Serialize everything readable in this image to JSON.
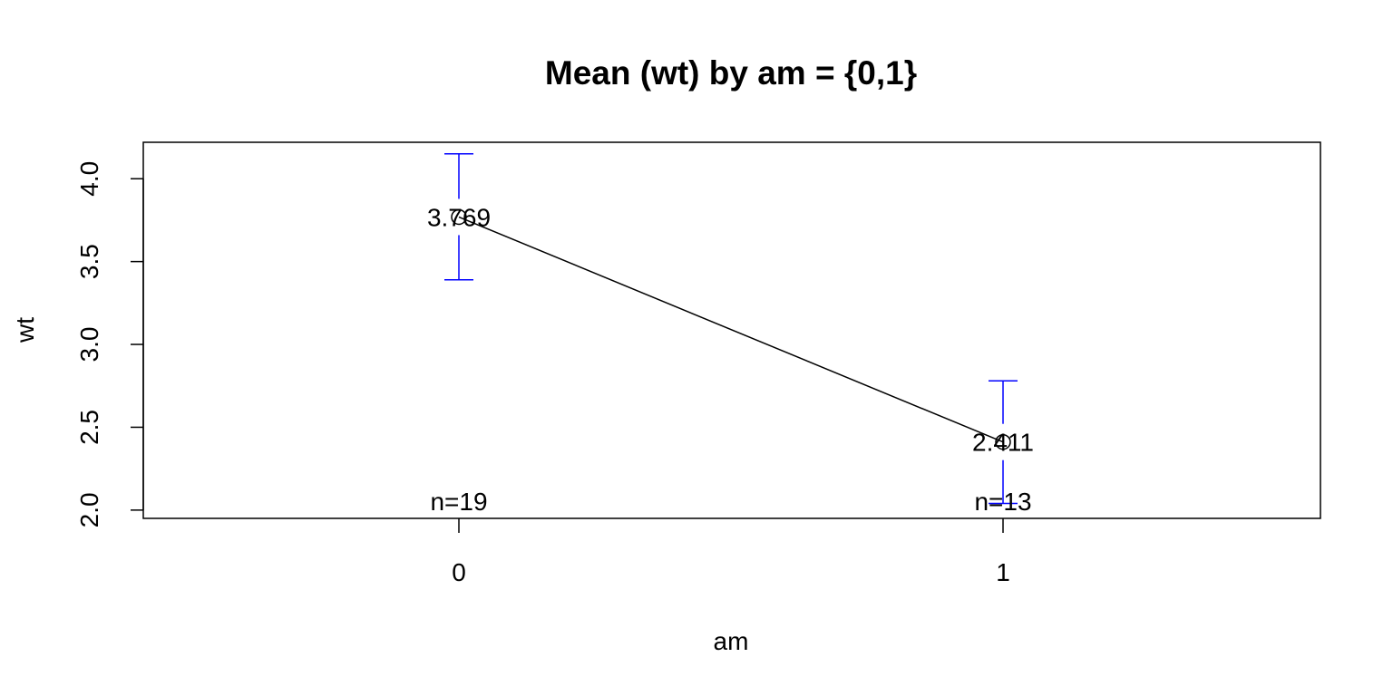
{
  "chart_data": {
    "type": "line",
    "title": "Mean (wt) by am = {0,1}",
    "xlabel": "am",
    "ylabel": "wt",
    "categories": [
      "0",
      "1"
    ],
    "y_ticks": [
      "2.0",
      "2.5",
      "3.0",
      "3.5",
      "4.0"
    ],
    "ylim": [
      1.95,
      4.22
    ],
    "series": [
      {
        "values": [
          3.769,
          2.411
        ],
        "value_labels": [
          "3.769",
          "2.411"
        ],
        "error_low": [
          3.39,
          2.04
        ],
        "error_high": [
          4.15,
          2.78
        ]
      }
    ],
    "n_labels": [
      "n=19",
      "n=13"
    ],
    "grid": false,
    "colors": {
      "line": "#000000",
      "error_bars": "#0000ff",
      "frame": "#000000"
    }
  }
}
